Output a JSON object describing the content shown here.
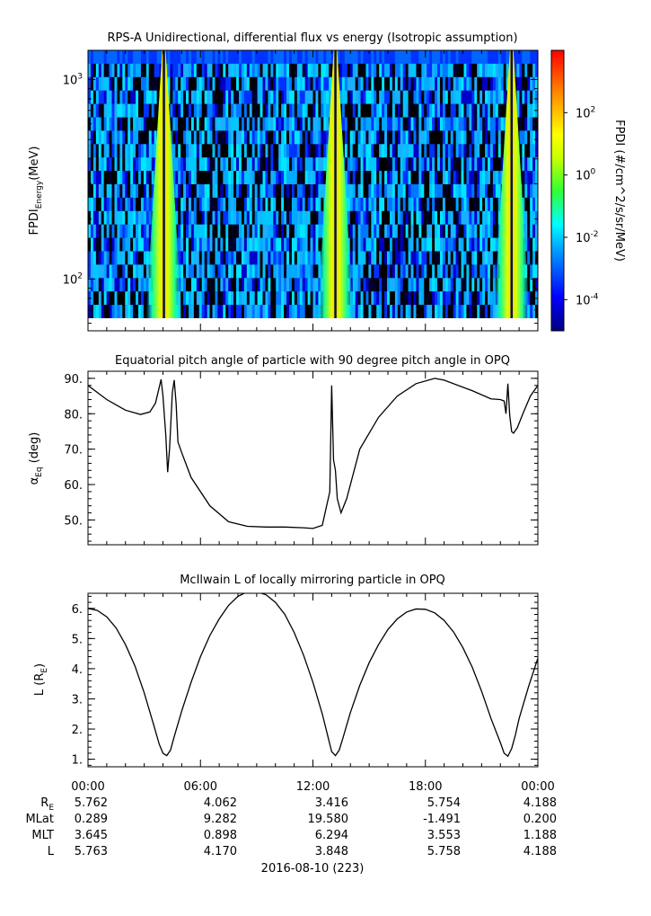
{
  "chart_data": [
    {
      "type": "heatmap",
      "title": "RPS-A Unidirectional, differential flux vs energy (Isotropic assumption)",
      "ylabel_main": "FPDI",
      "ylabel_sub": "Energy",
      "ylabel_unit": "(MeV)",
      "yscale": "log",
      "ylim": [
        55,
        1400
      ],
      "yticks": [
        {
          "value": 100,
          "base": "10",
          "exp": "2"
        },
        {
          "value": 1000,
          "base": "10",
          "exp": "3"
        }
      ],
      "xlim": [
        0,
        24
      ],
      "colorbar": {
        "label": "FPDI (#/cm^2/s/sr/MeV)",
        "scale": "log",
        "range_exp": [
          -5,
          4
        ],
        "ticks": [
          {
            "base": "10",
            "exp": "2"
          },
          {
            "base": "10",
            "exp": "0"
          },
          {
            "base": "10",
            "exp": "-2"
          },
          {
            "base": "10",
            "exp": "-4"
          }
        ],
        "colormap": "rainbow"
      },
      "bright_bands_hours": [
        4.05,
        13.2,
        22.6
      ],
      "background_flux_exp": [
        -5,
        -2.5
      ]
    },
    {
      "type": "line",
      "title": "Equatorial pitch angle of particle with 90 degree pitch angle in OPQ",
      "ylabel_main": "α",
      "ylabel_sub": "Eq",
      "ylabel_unit": "(deg)",
      "ylim": [
        43,
        92
      ],
      "yticks": [
        "90.",
        "80.",
        "70.",
        "60.",
        "50."
      ],
      "xlim": [
        0,
        24
      ],
      "x": [
        0,
        1,
        2,
        2.8,
        3.3,
        3.6,
        3.9,
        4.0,
        4.15,
        4.25,
        4.35,
        4.5,
        4.6,
        4.7,
        4.8,
        5.0,
        5.5,
        6.5,
        7.5,
        8.5,
        9.5,
        10.5,
        11.5,
        12.0,
        12.5,
        12.9,
        13.0,
        13.1,
        13.2,
        13.3,
        13.5,
        13.8,
        14.5,
        15.5,
        16.5,
        17.5,
        18.5,
        19.0,
        20.5,
        21.5,
        22.0,
        22.2,
        22.3,
        22.4,
        22.5,
        22.6,
        22.7,
        22.9,
        23.2,
        23.6,
        24.0
      ],
      "values": [
        88,
        84,
        81,
        79.8,
        80.5,
        83,
        89.7,
        85,
        74,
        63.5,
        70,
        86,
        89.5,
        83,
        72,
        69,
        62,
        54,
        49.5,
        48.2,
        48,
        48,
        47.8,
        47.6,
        48.5,
        58,
        88,
        67,
        64,
        56,
        52,
        56,
        70,
        79,
        85,
        88.5,
        90,
        89.5,
        86.5,
        84.2,
        84,
        83.6,
        80,
        88.5,
        79.5,
        75,
        74.5,
        76,
        80,
        85,
        88
      ],
      "xticks": [
        "00:00",
        "06:00",
        "12:00",
        "18:00",
        "00:00"
      ]
    },
    {
      "type": "line",
      "title": "McIlwain L of locally mirroring particle in OPQ",
      "ylabel_main": "L (R",
      "ylabel_sub": "E",
      "ylabel_unit": ")",
      "ylim": [
        0.75,
        6.5
      ],
      "yticks": [
        "6.",
        "5.",
        "4.",
        "3.",
        "2.",
        "1."
      ],
      "xlim": [
        0,
        24
      ],
      "x": [
        0,
        0.5,
        1,
        1.5,
        2,
        2.5,
        3,
        3.5,
        3.8,
        4.0,
        4.2,
        4.4,
        4.6,
        5.0,
        5.5,
        6,
        6.5,
        7,
        7.5,
        8,
        8.5,
        9,
        9.5,
        10,
        10.5,
        11,
        11.5,
        12,
        12.5,
        12.8,
        13.0,
        13.2,
        13.4,
        13.6,
        14,
        14.5,
        15,
        15.5,
        16,
        16.5,
        17,
        17.5,
        18,
        18.5,
        19,
        19.5,
        20,
        20.5,
        21,
        21.5,
        22,
        22.2,
        22.4,
        22.6,
        22.8,
        23.0,
        23.5,
        24.0
      ],
      "values": [
        6.0,
        5.93,
        5.72,
        5.35,
        4.8,
        4.1,
        3.2,
        2.15,
        1.5,
        1.2,
        1.12,
        1.3,
        1.75,
        2.6,
        3.55,
        4.4,
        5.1,
        5.65,
        6.1,
        6.4,
        6.55,
        6.55,
        6.45,
        6.2,
        5.8,
        5.2,
        4.45,
        3.55,
        2.5,
        1.75,
        1.25,
        1.12,
        1.3,
        1.7,
        2.55,
        3.45,
        4.2,
        4.8,
        5.3,
        5.65,
        5.88,
        5.98,
        5.97,
        5.85,
        5.6,
        5.22,
        4.7,
        4.05,
        3.25,
        2.35,
        1.55,
        1.2,
        1.1,
        1.35,
        1.8,
        2.35,
        3.4,
        4.35
      ],
      "xticks": [
        "00:00",
        "06:00",
        "12:00",
        "18:00",
        "00:00"
      ]
    }
  ],
  "ephemeris": {
    "row_labels": [
      {
        "main": "R",
        "sub": "E"
      },
      {
        "main": "MLat",
        "sub": ""
      },
      {
        "main": "MLT",
        "sub": ""
      },
      {
        "main": "L",
        "sub": ""
      }
    ],
    "columns": [
      [
        "5.762",
        "0.289",
        "3.645",
        "5.763"
      ],
      [
        "4.062",
        "9.282",
        "0.898",
        "4.170"
      ],
      [
        "3.416",
        "19.580",
        "6.294",
        "3.848"
      ],
      [
        "5.754",
        "-1.491",
        "3.553",
        "5.758"
      ],
      [
        "4.188",
        "0.200",
        "1.188",
        "4.188"
      ]
    ],
    "date": "2016-08-10 (223)"
  }
}
